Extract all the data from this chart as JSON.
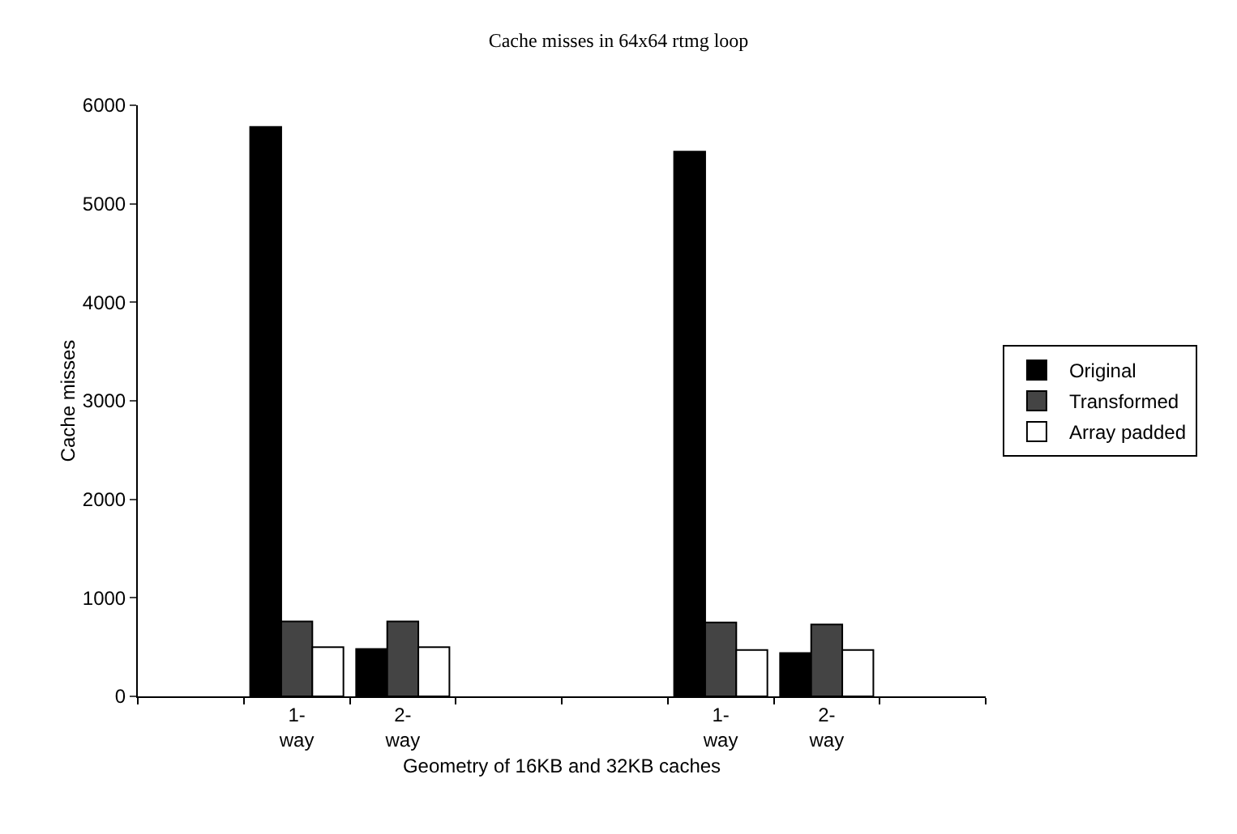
{
  "chart_data": {
    "type": "bar",
    "title": "Cache misses in 64x64 rtmg loop",
    "xlabel": "Geometry of 16KB and 32KB caches",
    "ylabel": "Cache misses",
    "categories": [
      null,
      "1-way",
      "2-way",
      null,
      null,
      "1-way",
      "2-way",
      null
    ],
    "series": [
      {
        "name": "Original",
        "color": "#000000",
        "values": [
          null,
          5780,
          480,
          null,
          null,
          5530,
          440,
          null
        ]
      },
      {
        "name": "Transformed",
        "color": "#444444",
        "values": [
          null,
          760,
          760,
          null,
          null,
          750,
          730,
          null
        ]
      },
      {
        "name": "Array padded",
        "color": "#ffffff",
        "values": [
          null,
          500,
          500,
          null,
          null,
          470,
          470,
          null
        ]
      }
    ],
    "ylim": [
      0,
      6000
    ],
    "yticks": [
      0,
      1000,
      2000,
      3000,
      4000,
      5000,
      6000
    ],
    "grid": false,
    "legend": "right"
  }
}
